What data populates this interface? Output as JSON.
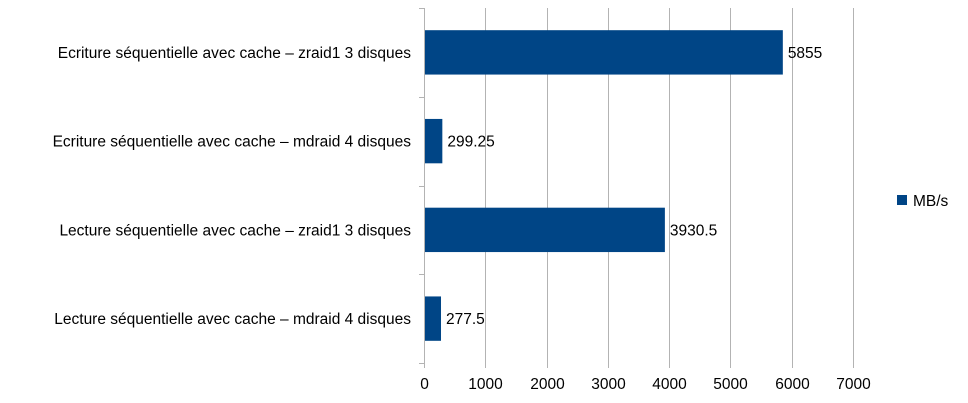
{
  "chart_data": {
    "type": "bar",
    "orientation": "horizontal",
    "title": "",
    "xlabel": "",
    "ylabel": "",
    "categories": [
      "Ecriture séquentielle avec cache – zraid1 3 disques",
      "Ecriture séquentielle avec cache – mdraid 4 disques",
      "Lecture séquentielle avec cache – zraid1 3 disques",
      "Lecture séquentielle avec cache – mdraid 4 disques"
    ],
    "series": [
      {
        "name": "MB/s",
        "color": "#004586",
        "values": [
          5855,
          299.25,
          3930.5,
          277.5
        ],
        "data_labels": [
          "5855",
          "299.25",
          "3930.5",
          "277.5"
        ]
      }
    ],
    "xlim": [
      0,
      7000
    ],
    "xticks": [
      0,
      1000,
      2000,
      3000,
      4000,
      5000,
      6000,
      7000
    ],
    "xtick_labels": [
      "0",
      "1000",
      "2000",
      "3000",
      "4000",
      "5000",
      "6000",
      "7000"
    ],
    "grid": "vertical",
    "legend_position": "right"
  }
}
